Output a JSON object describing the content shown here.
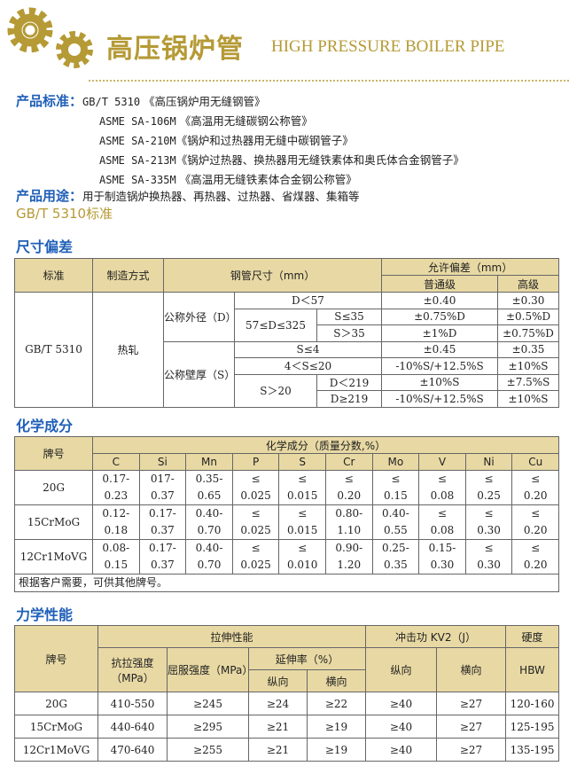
{
  "header": {
    "title_cn": "高压锅炉管",
    "title_en": "HIGH PRESSURE BOILER PIPE",
    "brand_color": "#b59a35",
    "logo": "gears-icon"
  },
  "standards": {
    "label": "产品标准：",
    "items": [
      {
        "code": "GB/T 5310",
        "name": "《高压锅炉用无缝钢管》"
      },
      {
        "code": "ASME SA-106M",
        "name": "《高温用无缝碳钢公称管》"
      },
      {
        "code": "ASME SA-210M",
        "name": "《锅炉和过热器用无缝中碳钢管子》"
      },
      {
        "code": "ASME SA-213M",
        "name": "《锅炉过热器、换热器用无缝铁素体和奥氏体合金钢管子》"
      },
      {
        "code": "ASME SA-335M",
        "name": "《高温用无缝铁素体合金钢公称管》"
      }
    ]
  },
  "usage": {
    "label": "产品用途：",
    "text": "用于制造锅炉换热器、再热器、过热器、省煤器、集箱等"
  },
  "gb_heading": "GB/T 5310标准",
  "size": {
    "heading": "尺寸偏差",
    "h": {
      "std": "标准",
      "method": "制造方式",
      "dim": "钢管尺寸（mm）",
      "tol": "允许偏差（mm）",
      "normal": "普通级",
      "high": "高级"
    },
    "std": "GB/T 5310",
    "method": "热轧",
    "od": "公称外径（D）",
    "wt": "公称壁厚（S）",
    "r1": {
      "c": "D＜57",
      "n": "±0.40",
      "h": "±0.30"
    },
    "r23": "57≤D≤325",
    "r2": {
      "c": "S≤35",
      "n": "±0.75%D",
      "h": "±0.5%D"
    },
    "r3": {
      "c": "S＞35",
      "n": "±1%D",
      "h": "±0.75%D"
    },
    "r4": {
      "c": "S≤4",
      "n": "±0.45",
      "h": "±0.35"
    },
    "r5": {
      "c": "4＜S≤20",
      "n": "-10%S/+12.5%S",
      "h": "±10%S"
    },
    "r67": "S＞20",
    "r6": {
      "c": "D＜219",
      "n": "±10%S",
      "h": "±7.5%S"
    },
    "r7": {
      "c": "D≥219",
      "n": "-10%S/+12.5%S",
      "h": "±10%S"
    }
  },
  "chem": {
    "heading": "化学成分",
    "grade": "牌号",
    "group": "化学成分（质量分数,%）",
    "elements": [
      "C",
      "Si",
      "Mn",
      "P",
      "S",
      "Cr",
      "Mo",
      "V",
      "Ni",
      "Cu"
    ],
    "rows": [
      {
        "grade": "20G",
        "v": [
          [
            "0.17-",
            "0.23"
          ],
          [
            "017-",
            "0.37"
          ],
          [
            "0.35-",
            "0.65"
          ],
          [
            "≤",
            "0.025"
          ],
          [
            "≤",
            "0.015"
          ],
          [
            "≤",
            "0.20"
          ],
          [
            "≤",
            "0.15"
          ],
          [
            "≤",
            "0.08"
          ],
          [
            "≤",
            "0.25"
          ],
          [
            "≤",
            "0.20"
          ]
        ]
      },
      {
        "grade": "15CrMoG",
        "v": [
          [
            "0.12-",
            "0.18"
          ],
          [
            "0.17-",
            "0.37"
          ],
          [
            "0.40-",
            "0.70"
          ],
          [
            "≤",
            "0.025"
          ],
          [
            "≤",
            "0.015"
          ],
          [
            "0.80-",
            "1.10"
          ],
          [
            "0.40-",
            "0.55"
          ],
          [
            "≤",
            "0.08"
          ],
          [
            "≤",
            "0.30"
          ],
          [
            "≤",
            "0.20"
          ]
        ]
      },
      {
        "grade": "12Cr1MoVG",
        "v": [
          [
            "0.08-",
            "0.15"
          ],
          [
            "0.17-",
            "0.37"
          ],
          [
            "0.40-",
            "0.70"
          ],
          [
            "≤",
            "0.025"
          ],
          [
            "≤",
            "0.010"
          ],
          [
            "0.90-",
            "1.20"
          ],
          [
            "0.25-",
            "0.35"
          ],
          [
            "0.15-",
            "0.30"
          ],
          [
            "≤",
            "0.30"
          ],
          [
            "≤",
            "0.20"
          ]
        ]
      }
    ],
    "note": "根据客户需要，可供其他牌号。"
  },
  "mech": {
    "heading": "力学性能",
    "h": {
      "grade": "牌号",
      "tensile": "拉伸性能",
      "impact": "冲击功 KV2（J）",
      "hard": "硬度",
      "ts": "抗拉强度（MPa）",
      "ys": "屈服强度（MPa）",
      "el": "延伸率（%）",
      "long": "纵向",
      "trans": "横向",
      "ilong": "纵向",
      "itrans": "横向",
      "hbw": "HBW"
    },
    "rows": [
      [
        "20G",
        "410-550",
        "≥245",
        "≥24",
        "≥22",
        "≥40",
        "≥27",
        "120-160"
      ],
      [
        "15CrMoG",
        "440-640",
        "≥295",
        "≥21",
        "≥19",
        "≥40",
        "≥27",
        "125-195"
      ],
      [
        "12Cr1MoVG",
        "470-640",
        "≥255",
        "≥21",
        "≥19",
        "≥40",
        "≥27",
        "135-195"
      ]
    ]
  }
}
